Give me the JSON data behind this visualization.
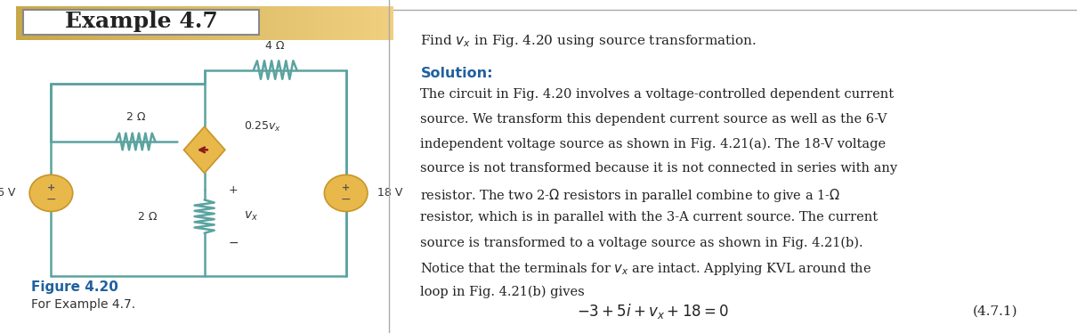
{
  "title": "Example 4.7",
  "find_text": "Find $v_x$ in Fig. 4.20 using source transformation.",
  "solution_header": "Solution:",
  "solution_body": "The circuit in Fig. 4.20 involves a voltage-controlled dependent current\nsource. We transform this dependent current source as well as the 6-V\nindependent voltage source as shown in Fig. 4.21(a). The 18-V voltage\nsource is not transformed because it is not connected in series with any\nresistor. The two 2-Ω resistors in parallel combine to give a 1-Ω\nresistor, which is in parallel with the 3-A current source. The current\nsource is transformed to a voltage source as shown in Fig. 4.21(b).\nNotice that the terminals for $v_x$ are intact. Applying KVL around the\nloop in Fig. 4.21(b) gives",
  "equation": "$-3 + 5i + v_x + 18 = 0$",
  "eq_label": "(4.7.1)",
  "fig_label": "Figure 4.20",
  "fig_caption": "For Example 4.7.",
  "header_bg_left": "#c8a84b",
  "header_bg_right": "#f0d080",
  "header_text_color": "#222222",
  "circuit_wire_color": "#5ba3a0",
  "resistor_color": "#5ba3a0",
  "vsource_color": "#e8b84b",
  "dep_source_color": "#e8b84b",
  "dep_arrow_color": "#8b1a1a",
  "solution_header_color": "#2060a0",
  "fig_label_color": "#2060a0",
  "background_color": "#ffffff",
  "border_color": "#cccccc"
}
